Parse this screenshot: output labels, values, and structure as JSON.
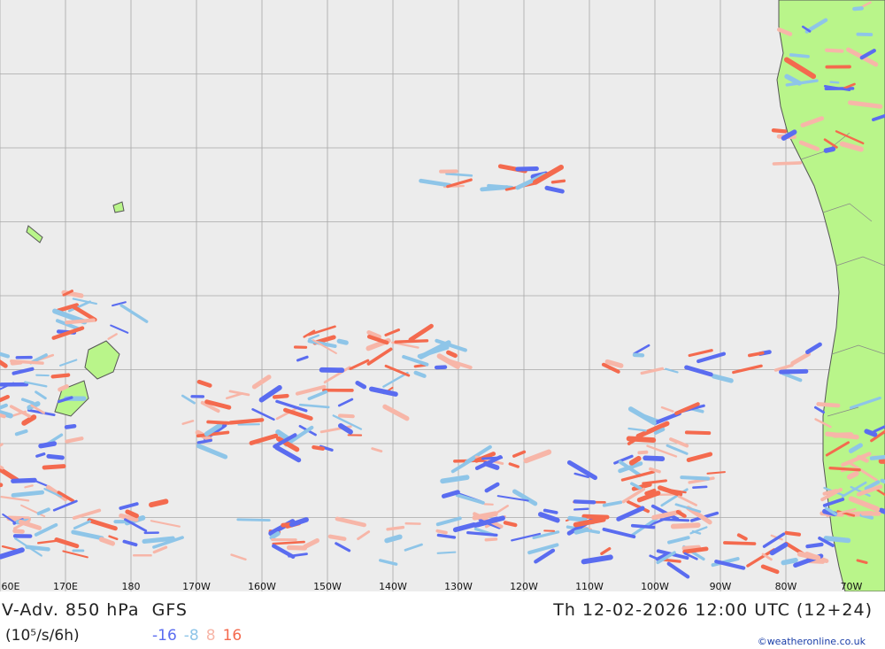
{
  "map": {
    "title": "V-Adv. 850 hPa",
    "model": "GFS",
    "datetime": "Th 12-02-2026 12:00 UTC (12+24)",
    "units": "(10⁵/s/6h)",
    "legend": [
      {
        "label": "-16",
        "color": "#5a6cf0"
      },
      {
        "label": "-8",
        "color": "#8ec5e8"
      },
      {
        "label": "8",
        "color": "#f7b6a8"
      },
      {
        "label": "16",
        "color": "#f46a4e"
      }
    ],
    "longitude_labels": [
      "60E",
      "170E",
      "180",
      "170W",
      "160W",
      "150W",
      "140W",
      "130W",
      "120W",
      "110W",
      "100W",
      "90W",
      "80W",
      "70W"
    ],
    "credit": "©weatheronline.co.uk",
    "land_color": "#b9f58a",
    "ocean_color": "#ececec",
    "grid_color": "#a8a8a8"
  }
}
